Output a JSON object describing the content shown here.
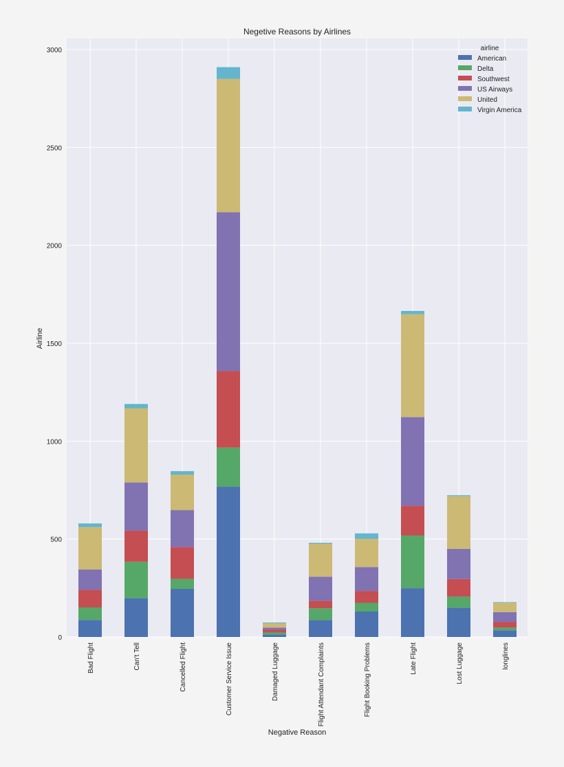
{
  "chart_data": {
    "type": "bar",
    "stacked": true,
    "title": "Negetive Reasons by Airlines",
    "xlabel": "Negative Reason",
    "ylabel": "Airline",
    "ylim": [
      0,
      3000
    ],
    "yticks": [
      0,
      500,
      1000,
      1500,
      2000,
      2500,
      3000
    ],
    "grid": true,
    "legend": {
      "title": "airline",
      "placement": "top-right"
    },
    "categories": [
      "Bad Flight",
      "Can't Tell",
      "Cancelled Flight",
      "Customer Service Issue",
      "Damaged Luggage",
      "Flight Attendant Complaints",
      "Flight Booking Problems",
      "Late Flight",
      "Lost Luggage",
      "longlines"
    ],
    "series": [
      {
        "name": "American",
        "color": "#4c72b0",
        "values": [
          87,
          198,
          246,
          768,
          12,
          87,
          130,
          249,
          149,
          34
        ]
      },
      {
        "name": "Delta",
        "color": "#55a868",
        "values": [
          64,
          186,
          51,
          199,
          11,
          60,
          44,
          269,
          57,
          14
        ]
      },
      {
        "name": "Southwest",
        "color": "#c44e52",
        "values": [
          90,
          159,
          162,
          391,
          14,
          38,
          61,
          152,
          90,
          29
        ]
      },
      {
        "name": "US Airways",
        "color": "#8172b2",
        "values": [
          104,
          246,
          189,
          811,
          11,
          123,
          122,
          453,
          154,
          50
        ]
      },
      {
        "name": "United",
        "color": "#ccb974",
        "values": [
          216,
          379,
          181,
          681,
          22,
          168,
          144,
          525,
          269,
          48
        ]
      },
      {
        "name": "Virgin America",
        "color": "#64b5cd",
        "values": [
          19,
          22,
          18,
          60,
          4,
          5,
          28,
          17,
          5,
          3
        ]
      }
    ]
  }
}
